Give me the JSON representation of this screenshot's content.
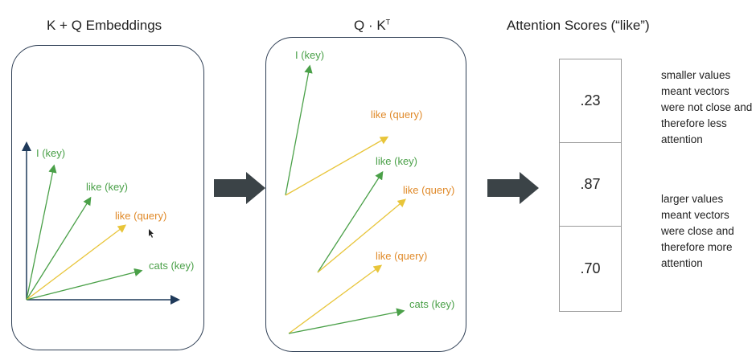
{
  "titles": {
    "embeddings": "K + Q Embeddings",
    "dot_product_base": "Q · K",
    "dot_product_sup": "T",
    "scores": "Attention Scores (“like”)"
  },
  "panel1": {
    "vectors": [
      {
        "label": "I (key)",
        "color": "#4aa048"
      },
      {
        "label": "like (key)",
        "color": "#4aa048"
      },
      {
        "label": "like (query)",
        "color": "#e08a2a"
      },
      {
        "label": "cats (key)",
        "color": "#4aa048"
      }
    ]
  },
  "panel2": {
    "labels": [
      "I (key)",
      "like (query)",
      "like (key)",
      "like (query)",
      "like (query)",
      "cats (key)"
    ]
  },
  "scores": [
    ".23",
    ".87",
    ".70"
  ],
  "notes": {
    "top": "smaller values meant vectors were not close and therefore less attention",
    "bottom": "larger values meant vectors were close and therefore more attention"
  },
  "colors": {
    "key_vector": "#4aa048",
    "query_vector": "#e8c53a",
    "query_label": "#e08a2a",
    "axis": "#1f3a5a",
    "block_arrow": "#3b4347",
    "panel_border": "#2f3f55"
  }
}
